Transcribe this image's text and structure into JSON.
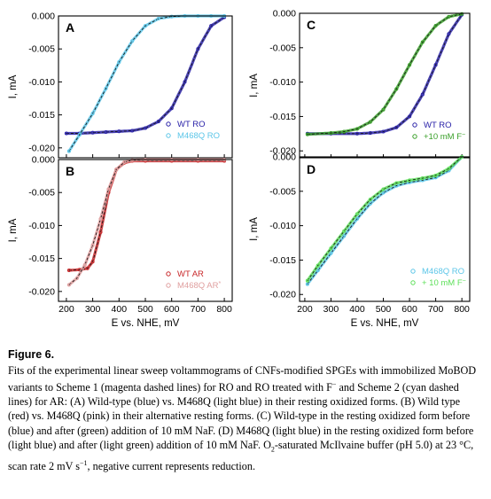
{
  "caption": {
    "label": "Figure 6.",
    "t1": "Fits of the experimental linear sweep voltammograms of CNFs-modified SPGEs with immobilized MoBOD variants to Scheme 1 (magenta dashed lines) for RO and RO treated with F",
    "t1_sup": "−",
    "t2": " and Scheme 2 (cyan dashed lines) for AR: (A) Wild-type (blue) vs. M468Q (light blue) in their resting oxidized forms. (B) Wild type (red) vs. M468Q (pink) in their alternative resting forms. (C) Wild-type in the resting oxidized form before (blue) and after (green) addition of 10 mM NaF. (D) M468Q (light blue) in the resting oxidized form before (light blue) and after (light green) addition of 10 mM NaF. O",
    "t2_sub": "2",
    "t3": "-saturated McIlvaine buffer (pH 5.0) at 23 °C, scan rate 2 mV s",
    "t3_sup": "−1",
    "t4": ", negative current represents reduction."
  },
  "colors": {
    "wt_ro": "#2a22a8",
    "m468q_ro": "#5cc6e8",
    "wt_ar": "#c8282a",
    "m468q_ar": "#e0a0a0",
    "f_green": "#3aa02a",
    "f_lightgreen": "#5ee05a",
    "fit_dash": "#1a1a1a"
  },
  "chart_data": [
    {
      "panel": "A",
      "type": "line",
      "xlabel": "",
      "ylabel": "I, mA",
      "xlim": [
        170,
        830
      ],
      "ylim": [
        -0.0215,
        0.0
      ],
      "xticks": [
        200,
        300,
        400,
        500,
        600,
        700,
        800
      ],
      "yticks": [
        "0.000",
        "-0.005",
        "-0.010",
        "-0.015",
        "-0.020"
      ],
      "series": [
        {
          "name": "WT RO",
          "colorKey": "wt_ro",
          "x": [
            200,
            250,
            300,
            350,
            400,
            450,
            500,
            550,
            600,
            650,
            700,
            750,
            800
          ],
          "y": [
            -0.0178,
            -0.0178,
            -0.0177,
            -0.0176,
            -0.0175,
            -0.0174,
            -0.017,
            -0.016,
            -0.014,
            -0.01,
            -0.005,
            -0.0015,
            -0.0002
          ]
        },
        {
          "name": "M468Q RO",
          "colorKey": "m468q_ro",
          "x": [
            210,
            250,
            300,
            350,
            400,
            450,
            500,
            550,
            600,
            650,
            700,
            750,
            800
          ],
          "y": [
            -0.0205,
            -0.018,
            -0.0148,
            -0.011,
            -0.007,
            -0.0038,
            -0.0015,
            -0.0004,
            -0.0001,
            0.0,
            0.0,
            0.0,
            0.0
          ]
        }
      ]
    },
    {
      "panel": "B",
      "type": "line",
      "xlabel": "E vs. NHE, mV",
      "ylabel": "I, mA",
      "xlim": [
        170,
        830
      ],
      "ylim": [
        -0.0215,
        0.0
      ],
      "xticks": [
        200,
        300,
        400,
        500,
        600,
        700,
        800
      ],
      "yticks": [
        "0.000",
        "-0.005",
        "-0.010",
        "-0.015",
        "-0.020"
      ],
      "series": [
        {
          "name": "WT AR",
          "colorKey": "wt_ar",
          "x": [
            210,
            250,
            280,
            300,
            330,
            360,
            390,
            420,
            450,
            500,
            600,
            700,
            800
          ],
          "y": [
            -0.0168,
            -0.0167,
            -0.0165,
            -0.0155,
            -0.011,
            -0.005,
            -0.0015,
            -0.0005,
            -0.0002,
            -0.0002,
            -0.0002,
            -0.0002,
            -0.0002
          ]
        },
        {
          "name": "M468Q AR",
          "colorKey": "m468q_ar",
          "x": [
            210,
            240,
            270,
            300,
            330,
            360,
            390,
            420,
            450,
            500,
            600,
            700,
            800
          ],
          "y": [
            -0.019,
            -0.018,
            -0.016,
            -0.013,
            -0.009,
            -0.0045,
            -0.0015,
            -0.0004,
            -0.0001,
            0.0,
            0.0,
            0.0,
            0.0
          ]
        }
      ]
    },
    {
      "panel": "C",
      "type": "line",
      "xlabel": "",
      "ylabel": "I, mA",
      "xlim": [
        180,
        830
      ],
      "ylim": [
        -0.021,
        0.0
      ],
      "xticks": [
        200,
        300,
        400,
        500,
        600,
        700,
        800
      ],
      "yticks": [
        "0.000",
        "-0.005",
        "-0.010",
        "-0.015",
        "-0.020"
      ],
      "series": [
        {
          "name": "WT RO",
          "colorKey": "wt_ro",
          "x": [
            210,
            300,
            400,
            450,
            500,
            550,
            600,
            650,
            700,
            750,
            800
          ],
          "y": [
            -0.0175,
            -0.0175,
            -0.0175,
            -0.0174,
            -0.0172,
            -0.0166,
            -0.015,
            -0.0118,
            -0.0075,
            -0.003,
            -0.0002
          ]
        },
        {
          "name": "+10 mM F",
          "colorKey": "f_green",
          "x": [
            210,
            300,
            350,
            400,
            450,
            500,
            550,
            600,
            650,
            700,
            750,
            800
          ],
          "y": [
            -0.0176,
            -0.0174,
            -0.0172,
            -0.0168,
            -0.0158,
            -0.014,
            -0.011,
            -0.0075,
            -0.0042,
            -0.0018,
            -0.0005,
            -0.0001
          ]
        }
      ]
    },
    {
      "panel": "D",
      "type": "line",
      "xlabel": "E vs. NHE, mV",
      "ylabel": "I, mA",
      "xlim": [
        180,
        830
      ],
      "ylim": [
        -0.021,
        0.0
      ],
      "xticks": [
        200,
        300,
        400,
        500,
        600,
        700,
        800
      ],
      "yticks": [
        "0.000",
        "-0.005",
        "-0.010",
        "-0.015",
        "-0.020"
      ],
      "series": [
        {
          "name": "M468Q RO",
          "colorKey": "m468q_ro",
          "x": [
            210,
            250,
            300,
            350,
            400,
            450,
            500,
            550,
            600,
            650,
            700,
            750,
            800
          ],
          "y": [
            -0.0185,
            -0.0165,
            -0.014,
            -0.0115,
            -0.009,
            -0.0068,
            -0.0052,
            -0.0042,
            -0.0037,
            -0.0034,
            -0.003,
            -0.002,
            0.0
          ]
        },
        {
          "name": "+ 10 mM F",
          "colorKey": "f_lightgreen",
          "x": [
            210,
            250,
            300,
            350,
            400,
            450,
            500,
            550,
            600,
            650,
            700,
            750,
            800
          ],
          "y": [
            -0.018,
            -0.0158,
            -0.0133,
            -0.0108,
            -0.0083,
            -0.0062,
            -0.0047,
            -0.0038,
            -0.0034,
            -0.0031,
            -0.0027,
            -0.0017,
            0.0
          ]
        }
      ]
    }
  ]
}
